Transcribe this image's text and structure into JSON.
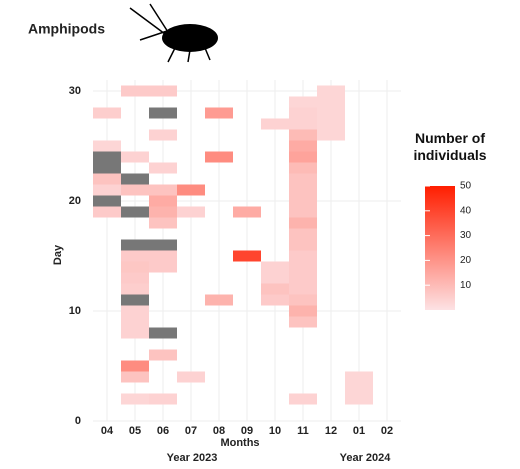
{
  "chart_data": {
    "type": "heatmap",
    "title": "Amphipods",
    "y_label": "Day",
    "x_label": "Months",
    "year_labels": [
      "Year 2023",
      "Year 2024"
    ],
    "legend_title": "Number of individuals",
    "categories": [
      "04",
      "05",
      "06",
      "07",
      "08",
      "09",
      "10",
      "11",
      "12",
      "01",
      "02"
    ],
    "ylim": [
      0,
      31
    ],
    "yticks": [
      0,
      10,
      20,
      30
    ],
    "clim": [
      0,
      50
    ],
    "cticks": [
      10,
      20,
      30,
      40,
      50
    ],
    "low_color": "#fde2e4",
    "high_color": "#ff1e00",
    "na_color": "#777777",
    "tiles": {
      "month": [
        "04",
        "04",
        "04",
        "04",
        "04",
        "04",
        "04",
        "04",
        "05",
        "05",
        "05",
        "05",
        "05",
        "05",
        "05",
        "05",
        "05",
        "05",
        "05",
        "05",
        "05",
        "05",
        "05",
        "05",
        "05",
        "06",
        "06",
        "06",
        "06",
        "06",
        "06",
        "06",
        "06",
        "06",
        "06",
        "06",
        "06",
        "06",
        "06",
        "07",
        "07",
        "07",
        "08",
        "08",
        "08",
        "09",
        "09",
        "10",
        "10",
        "10",
        "10",
        "10",
        "11",
        "11",
        "11",
        "11",
        "11",
        "11",
        "11",
        "11",
        "11",
        "11",
        "11",
        "11",
        "11",
        "11",
        "11",
        "11",
        "11",
        "11",
        "11",
        "11",
        "11",
        "11",
        "12",
        "12",
        "12",
        "12",
        "12",
        "01",
        "01",
        "01"
      ],
      "day": [
        28,
        25,
        24,
        23,
        22,
        21,
        20,
        19,
        30,
        24,
        22,
        21,
        19,
        16,
        15,
        14,
        13,
        12,
        11,
        10,
        9,
        8,
        5,
        4,
        2,
        30,
        28,
        26,
        23,
        21,
        20,
        19,
        18,
        16,
        15,
        14,
        8,
        6,
        2,
        21,
        19,
        4,
        28,
        24,
        11,
        19,
        15,
        27,
        14,
        13,
        12,
        11,
        29,
        28,
        27,
        26,
        25,
        24,
        23,
        22,
        21,
        20,
        19,
        18,
        17,
        16,
        15,
        14,
        13,
        12,
        11,
        10,
        9,
        2,
        30,
        29,
        28,
        27,
        26,
        4,
        3,
        2
      ],
      "values": [
        5,
        3,
        null,
        null,
        8,
        4,
        null,
        6,
        6,
        4,
        null,
        8,
        null,
        null,
        6,
        7,
        6,
        5,
        null,
        4,
        4,
        4,
        22,
        8,
        3,
        6,
        null,
        4,
        4,
        8,
        14,
        12,
        8,
        null,
        6,
        6,
        null,
        8,
        4,
        22,
        4,
        4,
        18,
        22,
        12,
        14,
        40,
        4,
        4,
        4,
        8,
        6,
        3,
        4,
        4,
        10,
        14,
        16,
        10,
        8,
        8,
        8,
        8,
        12,
        8,
        8,
        6,
        6,
        6,
        6,
        8,
        12,
        8,
        4,
        3,
        3,
        3,
        3,
        3,
        3,
        3,
        3
      ]
    }
  }
}
